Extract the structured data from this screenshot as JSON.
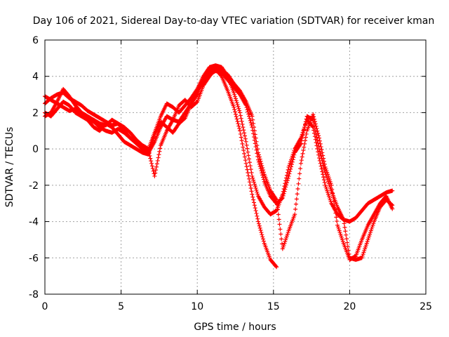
{
  "chart_data": {
    "type": "scatter",
    "title": "Day 106 of 2021, Sidereal Day-to-day VTEC variation (SDTVAR) for receiver kman",
    "xlabel": "GPS time / hours",
    "ylabel": "SDTVAR / TECUs",
    "xlim": [
      0,
      25
    ],
    "ylim": [
      -8,
      6
    ],
    "x_ticks": [
      "0",
      "5",
      "10",
      "15",
      "20",
      "25"
    ],
    "y_ticks": [
      "-8",
      "-6",
      "-4",
      "-2",
      "0",
      "2",
      "4",
      "6"
    ],
    "grid": true,
    "legend": "none",
    "marker": "plus",
    "color": "#ff0000",
    "series": [
      {
        "x": [
          0,
          0.4,
          0.8,
          1.2,
          1.6,
          2,
          2.4,
          2.8,
          3.2,
          3.6,
          4,
          4.4,
          4.8,
          5.2,
          5.6,
          6,
          6.4,
          6.8,
          7.2,
          7.6,
          8,
          8.4,
          8.8,
          9.2,
          9.6,
          10,
          10.4,
          10.8,
          11.2,
          11.6,
          12,
          12.4,
          12.8,
          13.2,
          13.6,
          14,
          14.4,
          14.8,
          15.2
        ],
        "y": [
          2.0,
          1.8,
          2.2,
          2.6,
          2.4,
          2.0,
          1.8,
          1.6,
          1.2,
          1.0,
          1.4,
          1.2,
          0.8,
          0.4,
          0.2,
          0.0,
          -0.2,
          -0.3,
          0.8,
          1.5,
          1.2,
          0.9,
          1.4,
          1.7,
          2.5,
          3.0,
          3.8,
          4.3,
          4.4,
          4.0,
          3.2,
          2.3,
          1.0,
          -0.8,
          -2.5,
          -4.0,
          -5.2,
          -6.1,
          -6.5
        ]
      },
      {
        "x": [
          0,
          0.4,
          0.8,
          1.2,
          1.6,
          2,
          2.4,
          2.8,
          3.2,
          3.6,
          4,
          4.4,
          4.8,
          5.2,
          5.6,
          6,
          6.4,
          6.8,
          7.2,
          7.6,
          8,
          8.4,
          8.8,
          9.2,
          9.6,
          10,
          10.4,
          10.8,
          11.2,
          11.6,
          12,
          12.4,
          12.8,
          13.2,
          13.6,
          14,
          14.4,
          14.8,
          15.2,
          15.6,
          16,
          16.4,
          16.8,
          17.2,
          17.6,
          18,
          18.4,
          18.8,
          19.2,
          19.6,
          20,
          20.4,
          20.8,
          21.2,
          21.6,
          22,
          22.4,
          22.8
        ],
        "y": [
          2.5,
          2.8,
          3.0,
          3.1,
          2.8,
          2.6,
          2.4,
          2.1,
          1.9,
          1.7,
          1.5,
          1.3,
          1.4,
          1.2,
          0.9,
          0.5,
          0.2,
          0.0,
          0.9,
          1.8,
          2.5,
          2.3,
          2.0,
          2.4,
          2.8,
          3.3,
          4.0,
          4.5,
          4.6,
          4.5,
          4.0,
          3.1,
          2.0,
          0.4,
          -1.5,
          -2.6,
          -3.2,
          -3.6,
          -3.4,
          -2.5,
          -1.0,
          0.0,
          0.6,
          1.6,
          1.2,
          -0.5,
          -2.0,
          -3.0,
          -3.6,
          -3.9,
          -4.0,
          -3.8,
          -3.4,
          -3.0,
          -2.8,
          -2.6,
          -2.4,
          -2.3
        ]
      },
      {
        "x": [
          0,
          0.4,
          0.8,
          1.2,
          1.6,
          2,
          2.4,
          2.8,
          3.2,
          3.6,
          4,
          4.4,
          4.8,
          5.2,
          5.6,
          6,
          6.4,
          6.8,
          7.2,
          7.6,
          8,
          8.4,
          8.8,
          9.2,
          9.6,
          10,
          10.4,
          10.8,
          11.2,
          11.6,
          12,
          12.4,
          12.8,
          13.2,
          13.6,
          14,
          14.4,
          14.8,
          15.2,
          15.6,
          16,
          16.4,
          16.8,
          17.2,
          17.6,
          18,
          18.4,
          18.8,
          19.2,
          19.6,
          20,
          20.4,
          20.8,
          21.2,
          21.6,
          22,
          22.4,
          22.8
        ],
        "y": [
          2.9,
          2.7,
          2.5,
          2.3,
          2.1,
          2.2,
          2.0,
          1.8,
          1.6,
          1.4,
          1.3,
          1.6,
          1.4,
          1.0,
          0.6,
          0.3,
          0.0,
          -0.2,
          0.4,
          1.2,
          1.8,
          1.6,
          1.5,
          2.0,
          2.5,
          3.2,
          3.7,
          4.1,
          4.3,
          4.2,
          3.8,
          3.4,
          3.0,
          2.4,
          1.2,
          -0.6,
          -1.8,
          -2.6,
          -3.0,
          -2.7,
          -1.5,
          -0.2,
          0.3,
          1.8,
          1.6,
          0.0,
          -1.3,
          -2.3,
          -3.2,
          -3.9,
          -6.0,
          -6.1,
          -6.0,
          -5.0,
          -4.0,
          -3.2,
          -2.8,
          -3.1
        ]
      },
      {
        "x": [
          0,
          0.4,
          0.8,
          1.2,
          1.6,
          2,
          2.4,
          2.8,
          3.2,
          3.6,
          4,
          4.4,
          4.8,
          5.2,
          5.6,
          6,
          6.4,
          6.8,
          7.2,
          7.6,
          8,
          8.4,
          8.8,
          9.2,
          9.6,
          10,
          10.4,
          10.8,
          11.2,
          11.6,
          12,
          12.4,
          12.8,
          13.2,
          13.6,
          14,
          14.4,
          14.8,
          15.2,
          15.6,
          16,
          16.4,
          16.8,
          17.2,
          17.6,
          18,
          18.4,
          18.8,
          19.2,
          19.6,
          20,
          20.4,
          20.8,
          21.2,
          21.6,
          22,
          22.4,
          22.8
        ],
        "y": [
          1.8,
          2.0,
          2.6,
          3.3,
          2.9,
          2.4,
          2.0,
          1.7,
          1.5,
          1.2,
          1.0,
          0.9,
          1.1,
          0.9,
          0.6,
          0.4,
          0.1,
          -0.1,
          -1.5,
          0.2,
          1.0,
          1.6,
          2.4,
          2.7,
          2.3,
          2.6,
          3.5,
          4.0,
          4.4,
          4.3,
          4.1,
          3.6,
          3.2,
          2.6,
          1.8,
          -0.2,
          -1.4,
          -2.3,
          -2.8,
          -5.5,
          -4.5,
          -3.6,
          -0.8,
          1.0,
          1.9,
          0.6,
          -1.0,
          -2.0,
          -4.2,
          -5.2,
          -6.1,
          -5.9,
          -5.0,
          -4.2,
          -3.6,
          -3.0,
          -2.6,
          -3.3
        ]
      }
    ]
  }
}
